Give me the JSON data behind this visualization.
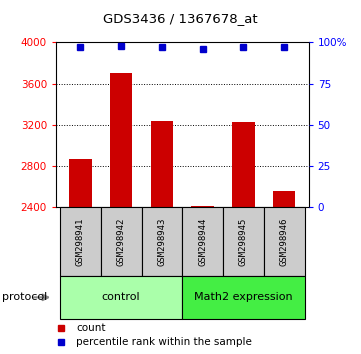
{
  "title": "GDS3436 / 1367678_at",
  "samples": [
    "GSM298941",
    "GSM298942",
    "GSM298943",
    "GSM298944",
    "GSM298945",
    "GSM298946"
  ],
  "counts": [
    2870,
    3700,
    3240,
    2415,
    3230,
    2560
  ],
  "percentile_ranks": [
    97,
    98,
    97,
    96,
    97,
    97
  ],
  "ylim_left": [
    2400,
    4000
  ],
  "ylim_right": [
    0,
    100
  ],
  "yticks_left": [
    2400,
    2800,
    3200,
    3600,
    4000
  ],
  "yticks_right": [
    0,
    25,
    50,
    75,
    100
  ],
  "ytick_labels_right": [
    "0",
    "25",
    "50",
    "75",
    "100%"
  ],
  "bar_color": "#cc0000",
  "dot_color": "#0000cc",
  "bar_width": 0.55,
  "group_spans": [
    [
      0,
      2,
      "control",
      "#aaffaa"
    ],
    [
      3,
      5,
      "Math2 expression",
      "#44ee44"
    ]
  ],
  "protocol_label": "protocol",
  "legend_items": [
    {
      "color": "#cc0000",
      "label": "count"
    },
    {
      "color": "#0000cc",
      "label": "percentile rank within the sample"
    }
  ],
  "sample_box_color": "#cccccc"
}
